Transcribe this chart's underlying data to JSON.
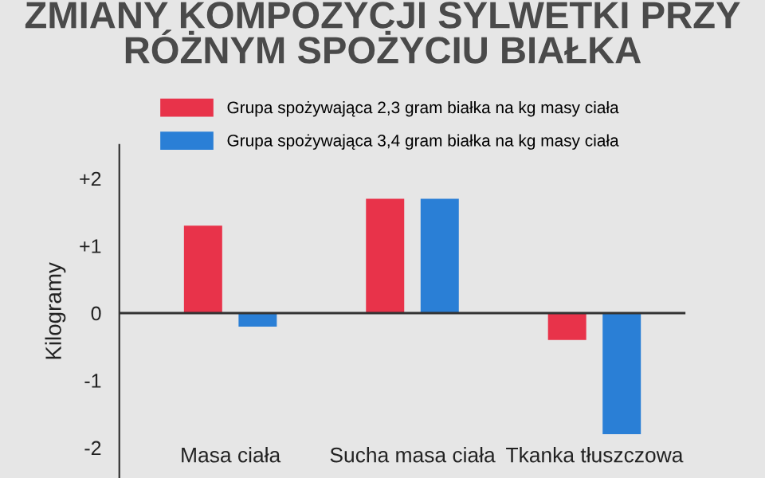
{
  "chart_data": {
    "type": "bar",
    "title": "ZMIANY KOMPOZYCJI SYLWETKI PRZY\nRÓŻNYM SPOŻYCIU BIAŁKA",
    "ylabel": "Kilogramy",
    "categories": [
      "Masa ciała",
      "Sucha masa ciała",
      "Tkanka tłuszczowa"
    ],
    "series": [
      {
        "name": "Grupa spożywająca 2,3 gram białka na kg masy ciała",
        "color": "#e8334a",
        "values": [
          1.3,
          1.7,
          -0.4
        ]
      },
      {
        "name": "Grupa spożywająca 3,4 gram białka na kg masy ciała",
        "color": "#2a7fd6",
        "values": [
          -0.2,
          1.7,
          -1.8
        ]
      }
    ],
    "ylim": [
      -2.45,
      2.5
    ],
    "yticks": [
      {
        "value": 2,
        "label": "+2"
      },
      {
        "value": 1,
        "label": "+1"
      },
      0,
      {
        "value": -1,
        "label": "-1"
      },
      {
        "value": -2,
        "label": "-2"
      }
    ],
    "ref_lines": [
      {
        "axis": "y",
        "value": 0,
        "color": "#333333"
      }
    ],
    "legend": "top",
    "grid": false
  }
}
